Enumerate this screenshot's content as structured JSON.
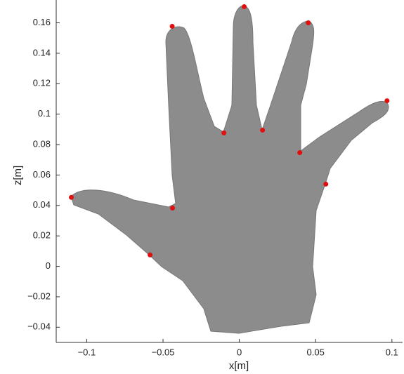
{
  "chart_data": {
    "type": "scatter",
    "x_label": "x[m]",
    "y_label": "z[m]",
    "xlim": [
      -0.12,
      0.107
    ],
    "ylim": [
      -0.05,
      0.175
    ],
    "xticks": [
      {
        "value": -0.1,
        "label": "−0.1"
      },
      {
        "value": -0.05,
        "label": "−0.05"
      },
      0,
      0.05,
      0.1
    ],
    "yticks": [
      {
        "value": -0.04,
        "label": "−0.04"
      },
      {
        "value": -0.02,
        "label": "−0.02"
      },
      0,
      0.02,
      0.04,
      0.06,
      0.08,
      0.1,
      0.12,
      0.14,
      0.16
    ],
    "color": "#e01010",
    "x": [
      -0.044,
      0.0032,
      0.0452,
      0.0968,
      -0.0101,
      0.0152,
      0.0396,
      0.0567,
      -0.1101,
      -0.0438,
      -0.0585
    ],
    "values": [
      0.1577,
      0.1706,
      0.16,
      0.1088,
      0.0877,
      0.0895,
      0.0747,
      0.054,
      0.0453,
      0.0383,
      0.0075
    ]
  }
}
